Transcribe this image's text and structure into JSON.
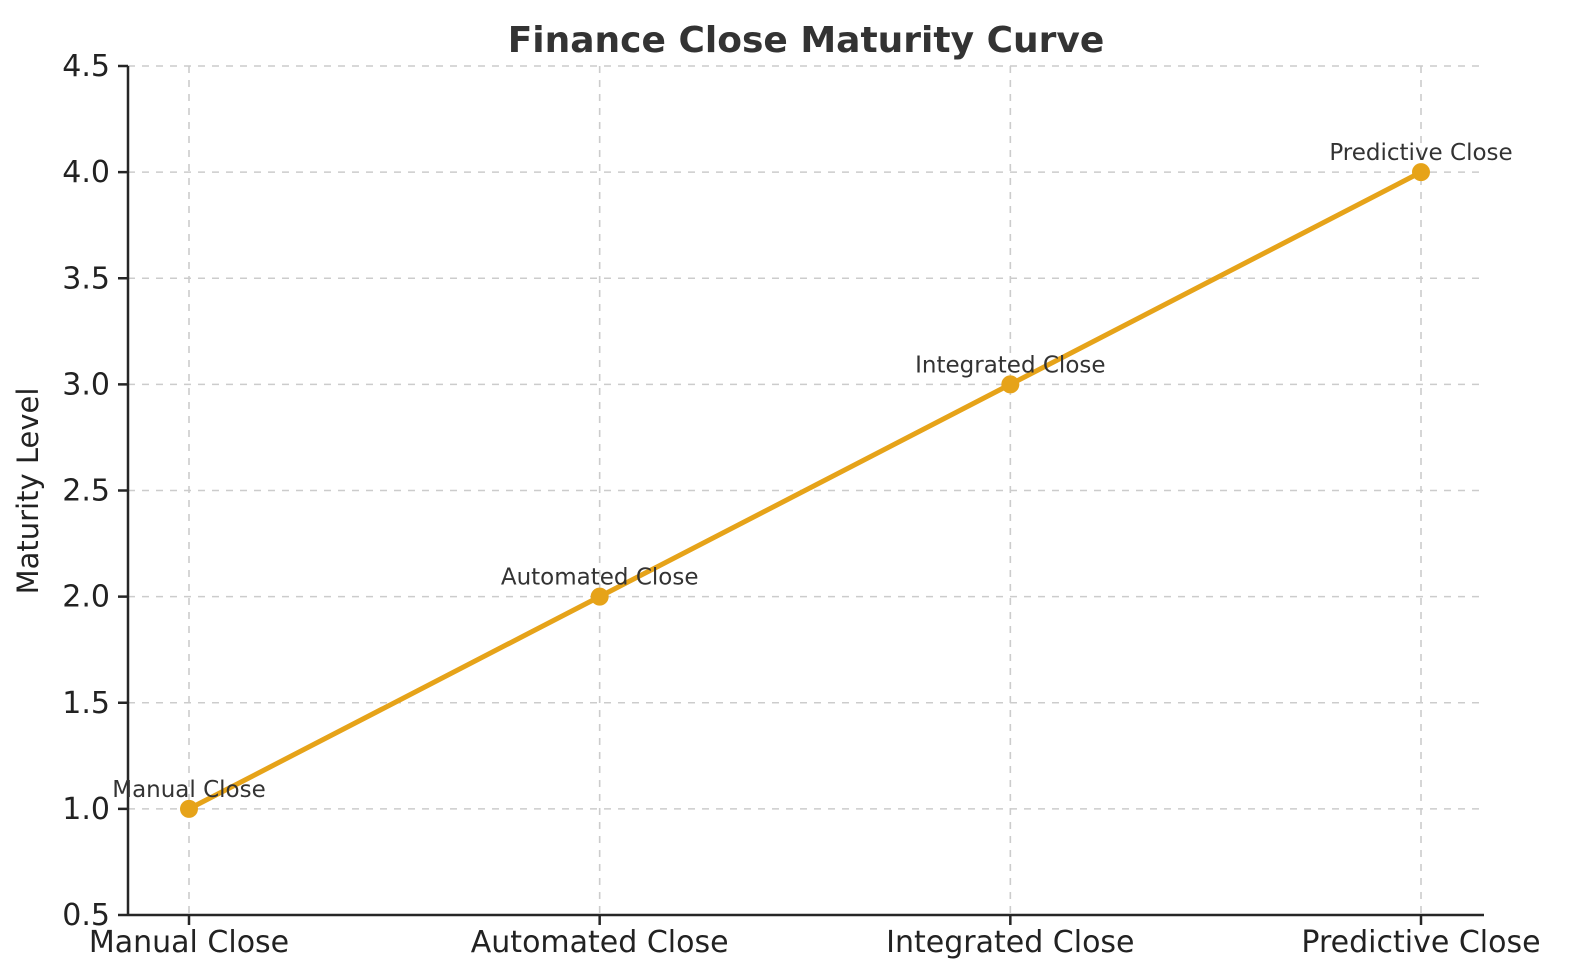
{
  "chart_data": {
    "type": "line",
    "title": "Finance Close Maturity Curve",
    "xlabel": "",
    "ylabel": "Maturity Level",
    "categories": [
      "Manual Close",
      "Automated Close",
      "Integrated Close",
      "Predictive Close"
    ],
    "values": [
      1.0,
      2.0,
      3.0,
      4.0
    ],
    "point_labels": [
      "Manual Close",
      "Automated Close",
      "Integrated Close",
      "Predictive Close"
    ],
    "ylim": [
      0.5,
      4.5
    ],
    "ytick_values": [
      0.5,
      1.0,
      1.5,
      2.0,
      2.5,
      3.0,
      3.5,
      4.0,
      4.5
    ],
    "ytick_labels": [
      "0.5",
      "1.0",
      "1.5",
      "2.0",
      "2.5",
      "3.0",
      "3.5",
      "4.0",
      "4.5"
    ],
    "grid": true,
    "grid_style": "dashed",
    "legend": "none",
    "marker": "circle",
    "colors": {
      "line": "#E6A319",
      "marker": "#E6A319",
      "title": "#333333",
      "tick_text": "#222222",
      "axis": "#262626",
      "grid": "#cccccc",
      "annotation": "#333333",
      "background": "#ffffff"
    }
  }
}
